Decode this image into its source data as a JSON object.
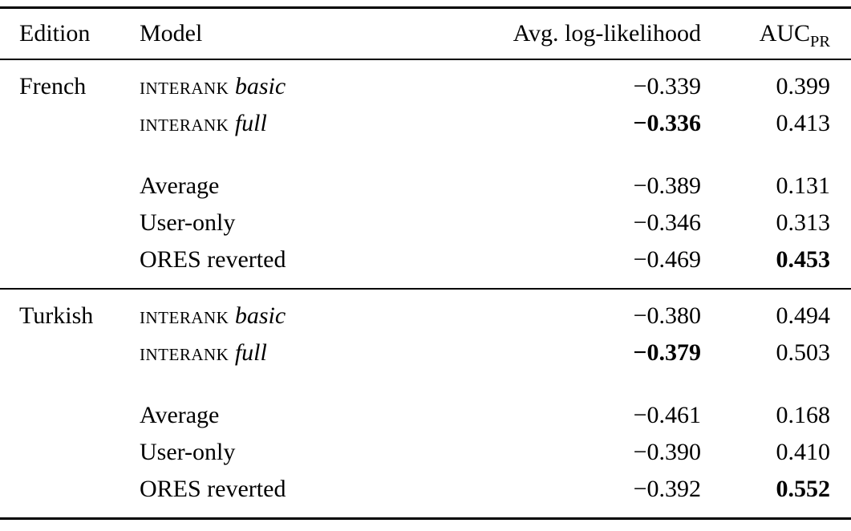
{
  "table": {
    "headers": [
      "Edition",
      "Model",
      "Avg. log-likelihood",
      "AUC"
    ],
    "auc_subscript": "PR",
    "sections": [
      {
        "edition": "French",
        "groups": [
          {
            "rows": [
              {
                "model_sc": "interank",
                "model_it": "basic",
                "ll": "−0.339",
                "ll_bold": false,
                "auc": "0.399",
                "auc_bold": false
              },
              {
                "model_sc": "interank",
                "model_it": "full",
                "ll": "−0.336",
                "ll_bold": true,
                "auc": "0.413",
                "auc_bold": false
              }
            ]
          },
          {
            "rows": [
              {
                "model": "Average",
                "ll": "−0.389",
                "ll_bold": false,
                "auc": "0.131",
                "auc_bold": false
              },
              {
                "model": "User-only",
                "ll": "−0.346",
                "ll_bold": false,
                "auc": "0.313",
                "auc_bold": false
              },
              {
                "model": "ORES reverted",
                "ll": "−0.469",
                "ll_bold": false,
                "auc": "0.453",
                "auc_bold": true
              }
            ]
          }
        ]
      },
      {
        "edition": "Turkish",
        "groups": [
          {
            "rows": [
              {
                "model_sc": "interank",
                "model_it": "basic",
                "ll": "−0.380",
                "ll_bold": false,
                "auc": "0.494",
                "auc_bold": false
              },
              {
                "model_sc": "interank",
                "model_it": "full",
                "ll": "−0.379",
                "ll_bold": true,
                "auc": "0.503",
                "auc_bold": false
              }
            ]
          },
          {
            "rows": [
              {
                "model": "Average",
                "ll": "−0.461",
                "ll_bold": false,
                "auc": "0.168",
                "auc_bold": false
              },
              {
                "model": "User-only",
                "ll": "−0.390",
                "ll_bold": false,
                "auc": "0.410",
                "auc_bold": false
              },
              {
                "model": "ORES reverted",
                "ll": "−0.392",
                "ll_bold": false,
                "auc": "0.552",
                "auc_bold": true
              }
            ]
          }
        ]
      }
    ]
  }
}
